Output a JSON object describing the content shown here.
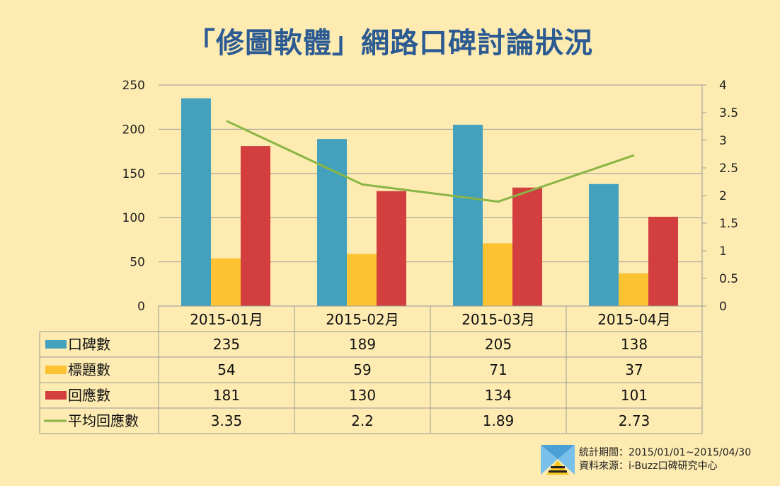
{
  "title": "「修圖軟體」網路口碑討論狀況",
  "chart_data": {
    "type": "bar",
    "categories": [
      "2015-01月",
      "2015-02月",
      "2015-03月",
      "2015-04月"
    ],
    "series": [
      {
        "name": "口碑數",
        "type": "bar",
        "axis": "left",
        "color": "#44a1bd",
        "values": [
          235,
          189,
          205,
          138
        ]
      },
      {
        "name": "標題數",
        "type": "bar",
        "axis": "left",
        "color": "#fcc232",
        "values": [
          54,
          59,
          71,
          37
        ]
      },
      {
        "name": "回應數",
        "type": "bar",
        "axis": "left",
        "color": "#d33e3e",
        "values": [
          181,
          130,
          134,
          101
        ]
      },
      {
        "name": "平均回應數",
        "type": "line",
        "axis": "right",
        "color": "#8ab545",
        "values": [
          3.35,
          2.2,
          1.89,
          2.73
        ]
      }
    ],
    "display_values": [
      [
        "235",
        "189",
        "205",
        "138"
      ],
      [
        "54",
        "59",
        "71",
        "37"
      ],
      [
        "181",
        "130",
        "134",
        "101"
      ],
      [
        "3.35",
        "2.2",
        "1.89",
        "2.73"
      ]
    ],
    "ylim_left": [
      0,
      250
    ],
    "yticks_left": [
      "0",
      "50",
      "100",
      "150",
      "200",
      "250"
    ],
    "ylim_right": [
      0,
      4
    ],
    "yticks_right": [
      "0",
      "0.5",
      "1",
      "1.5",
      "2",
      "2.5",
      "3",
      "3.5",
      "4"
    ],
    "grid": true,
    "data_table": true
  },
  "footer": {
    "period": "統計期間：2015/01/01~2015/04/30",
    "source": "資料來源：i-Buzz口碑研究中心"
  }
}
